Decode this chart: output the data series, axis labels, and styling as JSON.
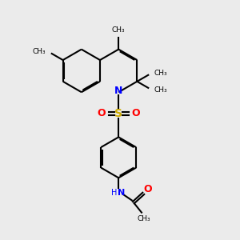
{
  "bg_color": "#ebebeb",
  "bond_color": "#000000",
  "N_color": "#0000ff",
  "O_color": "#ff0000",
  "S_color": "#ccaa00",
  "NH_color": "#0000ff",
  "line_width": 1.5,
  "dbo": 0.055,
  "xlim": [
    0,
    10
  ],
  "ylim": [
    0,
    11
  ]
}
